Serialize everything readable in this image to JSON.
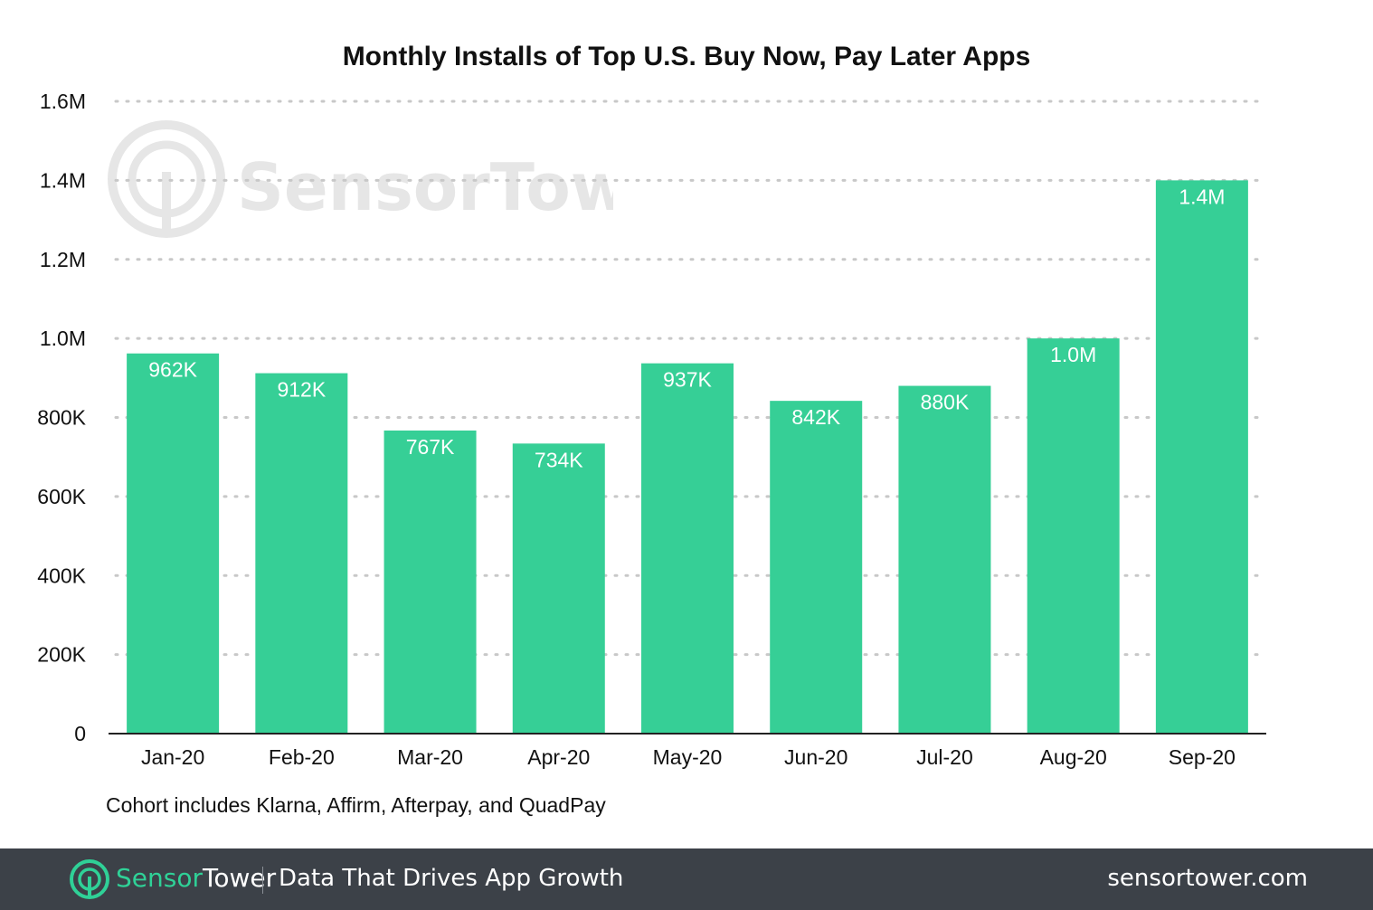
{
  "chart_data": {
    "type": "bar",
    "title": "Monthly Installs of Top U.S. Buy Now, Pay Later Apps",
    "categories": [
      "Jan-20",
      "Feb-20",
      "Mar-20",
      "Apr-20",
      "May-20",
      "Jun-20",
      "Jul-20",
      "Aug-20",
      "Sep-20"
    ],
    "values": [
      962000,
      912000,
      767000,
      734000,
      937000,
      842000,
      880000,
      1000000,
      1400000
    ],
    "data_labels": [
      "962K",
      "912K",
      "767K",
      "734K",
      "937K",
      "842K",
      "880K",
      "1.0M",
      "1.4M"
    ],
    "ylim": [
      0,
      1600000
    ],
    "y_ticks": [
      0,
      200000,
      400000,
      600000,
      800000,
      1000000,
      1200000,
      1400000,
      1600000
    ],
    "y_tick_labels": [
      "0",
      "200K",
      "400K",
      "600K",
      "800K",
      "1.0M",
      "1.2M",
      "1.4M",
      "1.6M"
    ],
    "grid": true,
    "grid_style": "dotted",
    "bar_color": "#36cf96",
    "label_color": "#ffffff",
    "note": "Cohort includes Klarna, Affirm, Afterpay, and QuadPay"
  },
  "watermark": {
    "brand": "SensorTower",
    "icon": "sensortower-logo-icon"
  },
  "footer": {
    "brand_part1": "Sensor",
    "brand_part2": "Tower",
    "tagline": "Data That Drives App Growth",
    "url": "sensortower.com",
    "background": "#3c4148",
    "accent": "#2fd197"
  }
}
